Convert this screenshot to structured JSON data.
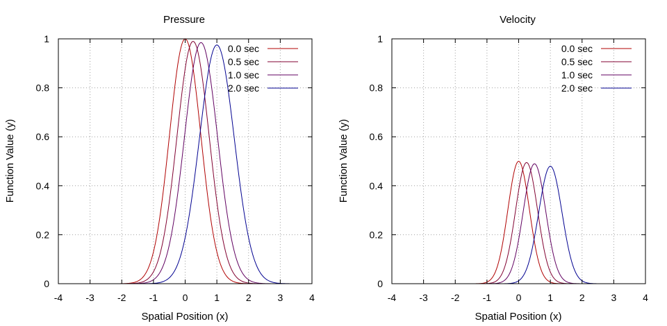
{
  "chart_data": [
    {
      "type": "line",
      "title": "Pressure",
      "xlabel": "Spatial Position (x)",
      "ylabel": "Function Value (y)",
      "xlim": [
        -4,
        4
      ],
      "ylim": [
        0,
        1
      ],
      "xticks": [
        "-4",
        "-3",
        "-2",
        "-1",
        "0",
        "1",
        "2",
        "3",
        "4"
      ],
      "yticks": [
        "0",
        "0.2",
        "0.4",
        "0.6",
        "0.8",
        "1"
      ],
      "grid": true,
      "legend_position": "top-right",
      "series": [
        {
          "name": "0.0 sec",
          "color": "#b00000",
          "peak_x": 0.0,
          "peak_y": 1.0,
          "width": 0.7
        },
        {
          "name": "0.5 sec",
          "color": "#800030",
          "peak_x": 0.25,
          "peak_y": 0.99,
          "width": 0.72
        },
        {
          "name": "1.0 sec",
          "color": "#600060",
          "peak_x": 0.5,
          "peak_y": 0.985,
          "width": 0.74
        },
        {
          "name": "2.0 sec",
          "color": "#000090",
          "peak_x": 1.0,
          "peak_y": 0.975,
          "width": 0.78
        }
      ]
    },
    {
      "type": "line",
      "title": "Velocity",
      "xlabel": "Spatial Position (x)",
      "ylabel": "Function Value (y)",
      "xlim": [
        -4,
        4
      ],
      "ylim": [
        0,
        1
      ],
      "xticks": [
        "-4",
        "-3",
        "-2",
        "-1",
        "0",
        "1",
        "2",
        "3",
        "4"
      ],
      "yticks": [
        "0",
        "0.2",
        "0.4",
        "0.6",
        "0.8",
        "1"
      ],
      "grid": true,
      "legend_position": "top-right",
      "series": [
        {
          "name": "0.0 sec",
          "color": "#b00000",
          "peak_x": 0.0,
          "peak_y": 0.5,
          "width": 0.48
        },
        {
          "name": "0.5 sec",
          "color": "#800030",
          "peak_x": 0.25,
          "peak_y": 0.495,
          "width": 0.49
        },
        {
          "name": "1.0 sec",
          "color": "#600060",
          "peak_x": 0.5,
          "peak_y": 0.49,
          "width": 0.5
        },
        {
          "name": "2.0 sec",
          "color": "#000090",
          "peak_x": 1.0,
          "peak_y": 0.48,
          "width": 0.52
        }
      ]
    }
  ]
}
